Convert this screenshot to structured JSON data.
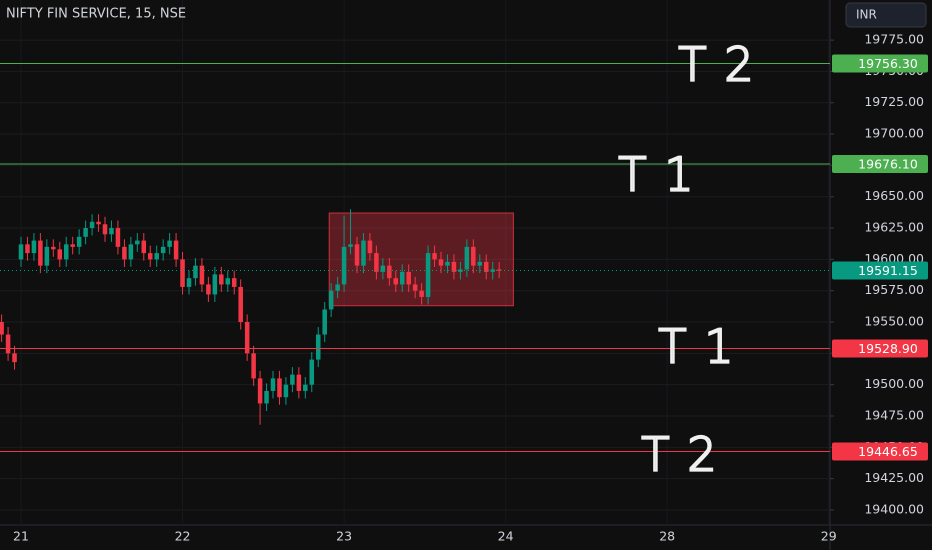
{
  "chart_data": {
    "type": "candlestick",
    "title": "NIFTY FIN SERVICE, 15, NSE",
    "currency": "INR",
    "up_color": "#089981",
    "down_color": "#f23645",
    "x": [
      -3,
      -2,
      -1,
      0,
      1,
      2,
      3,
      4,
      5,
      6,
      7,
      8,
      9,
      10,
      11,
      12,
      13,
      14,
      15,
      16,
      17,
      18,
      19,
      20,
      21,
      22,
      23,
      24,
      25,
      26,
      27,
      28,
      29,
      30,
      31,
      32,
      33,
      34,
      35,
      36,
      37,
      38,
      39,
      40,
      41,
      42,
      43,
      44,
      45,
      46,
      47,
      48,
      49,
      50,
      51,
      52,
      53,
      54,
      55,
      56,
      57,
      58,
      59,
      60,
      61,
      62,
      63,
      64,
      65,
      66,
      67,
      68,
      69,
      70,
      71,
      72,
      73,
      74
    ],
    "open": [
      19550,
      19540,
      19525,
      19600,
      19612,
      19605,
      19615,
      19595,
      19610,
      19608,
      19600,
      19612,
      19610,
      19618,
      19625,
      19630,
      19628,
      19620,
      19625,
      19610,
      19600,
      19612,
      19615,
      19605,
      19600,
      19605,
      19610,
      19615,
      19600,
      19578,
      19585,
      19595,
      19580,
      19572,
      19588,
      19580,
      19585,
      19578,
      19550,
      19525,
      19505,
      19485,
      19495,
      19505,
      19490,
      19500,
      19508,
      19495,
      19500,
      19520,
      19540,
      19560,
      19575,
      19580,
      19610,
      19612,
      19595,
      19615,
      19605,
      19590,
      19595,
      19585,
      19580,
      19590,
      19580,
      19575,
      19570,
      19605,
      19600,
      19595,
      19598,
      19590,
      19592,
      19610,
      19595,
      19598,
      19590,
      19592
    ],
    "high": [
      19556,
      19546,
      19531,
      19618,
      19618,
      19621,
      19621,
      19616,
      19616,
      19614,
      19618,
      19618,
      19624,
      19631,
      19636,
      19636,
      19634,
      19631,
      19631,
      19616,
      19618,
      19621,
      19621,
      19611,
      19611,
      19616,
      19621,
      19621,
      19606,
      19591,
      19601,
      19601,
      19586,
      19594,
      19594,
      19591,
      19591,
      19584,
      19556,
      19531,
      19511,
      19501,
      19511,
      19511,
      19506,
      19514,
      19514,
      19506,
      19526,
      19546,
      19566,
      19581,
      19586,
      19635,
      19640,
      19618,
      19621,
      19621,
      19611,
      19601,
      19601,
      19591,
      19596,
      19596,
      19586,
      19581,
      19611,
      19611,
      19606,
      19604,
      19604,
      19598,
      19616,
      19616,
      19604,
      19604,
      19598,
      19598
    ],
    "low": [
      19534,
      19519,
      19512,
      19594,
      19599,
      19599,
      19589,
      19589,
      19602,
      19594,
      19594,
      19604,
      19604,
      19612,
      19619,
      19622,
      19614,
      19614,
      19604,
      19594,
      19594,
      19606,
      19599,
      19594,
      19594,
      19599,
      19604,
      19594,
      19572,
      19572,
      19579,
      19574,
      19566,
      19566,
      19574,
      19574,
      19572,
      19544,
      19519,
      19499,
      19468,
      19479,
      19489,
      19484,
      19484,
      19494,
      19489,
      19489,
      19494,
      19514,
      19534,
      19554,
      19569,
      19574,
      19604,
      19589,
      19589,
      19599,
      19584,
      19584,
      19579,
      19574,
      19574,
      19574,
      19569,
      19564,
      19564,
      19594,
      19589,
      19589,
      19584,
      19584,
      19586,
      19589,
      19589,
      19584,
      19584,
      19585
    ],
    "close": [
      19540,
      19525,
      19518,
      19612,
      19605,
      19615,
      19595,
      19610,
      19608,
      19600,
      19612,
      19610,
      19618,
      19625,
      19630,
      19628,
      19620,
      19625,
      19610,
      19600,
      19612,
      19615,
      19605,
      19600,
      19605,
      19610,
      19615,
      19600,
      19578,
      19585,
      19595,
      19580,
      19572,
      19588,
      19580,
      19585,
      19578,
      19550,
      19525,
      19505,
      19485,
      19495,
      19505,
      19490,
      19500,
      19508,
      19495,
      19500,
      19520,
      19540,
      19560,
      19575,
      19580,
      19610,
      19612,
      19595,
      19615,
      19605,
      19590,
      19595,
      19585,
      19580,
      19590,
      19580,
      19575,
      19570,
      19605,
      19600,
      19595,
      19598,
      19590,
      19592,
      19610,
      19595,
      19598,
      19590,
      19592,
      19591
    ],
    "xlim": [
      -3.25,
      125.2
    ],
    "xticks": [
      {
        "value": 0,
        "label": "21"
      },
      {
        "value": 25,
        "label": "22"
      },
      {
        "value": 50,
        "label": "23"
      },
      {
        "value": 75,
        "label": "24"
      },
      {
        "value": 100,
        "label": "28"
      },
      {
        "value": 125,
        "label": "29"
      }
    ],
    "ylim": [
      19388,
      19807
    ],
    "yticks": [
      {
        "value": 19400,
        "label": "19400.00"
      },
      {
        "value": 19425,
        "label": "19425.00"
      },
      {
        "value": 19450,
        "label": "19450.00"
      },
      {
        "value": 19475,
        "label": "19475.00"
      },
      {
        "value": 19500,
        "label": "19500.00"
      },
      {
        "value": 19525,
        "label": "19525.00"
      },
      {
        "value": 19550,
        "label": "19550.00"
      },
      {
        "value": 19575,
        "label": "19575.00"
      },
      {
        "value": 19600,
        "label": "19600.00"
      },
      {
        "value": 19625,
        "label": "19625.00"
      },
      {
        "value": 19650,
        "label": "19650.00"
      },
      {
        "value": 19675,
        "label": "19675.00"
      },
      {
        "value": 19700,
        "label": "19700.00"
      },
      {
        "value": 19725,
        "label": "19725.00"
      },
      {
        "value": 19750,
        "label": "19750.00"
      },
      {
        "value": 19775,
        "label": "19775.00"
      }
    ],
    "grid": true,
    "levels": [
      {
        "value": 19756.3,
        "label": "19756.30",
        "color": "#4caf50",
        "dashed": false
      },
      {
        "value": 19676.1,
        "label": "19676.10",
        "color": "#4caf50",
        "dashed": false
      },
      {
        "value": 19591.15,
        "label": "19591.15",
        "color": "#089981",
        "dashed": true
      },
      {
        "value": 19528.9,
        "label": "19528.90",
        "color": "#f23645",
        "dashed": false
      },
      {
        "value": 19446.65,
        "label": "19446.65",
        "color": "#f23645",
        "dashed": false
      }
    ],
    "zone": {
      "x": [
        47.7,
        76.2
      ],
      "y": [
        19563,
        19637
      ],
      "color": "#f23645"
    },
    "annotations": [
      {
        "text": "T2"
      },
      {
        "text": "T1"
      },
      {
        "text": "T1"
      },
      {
        "text": "T2"
      }
    ]
  }
}
